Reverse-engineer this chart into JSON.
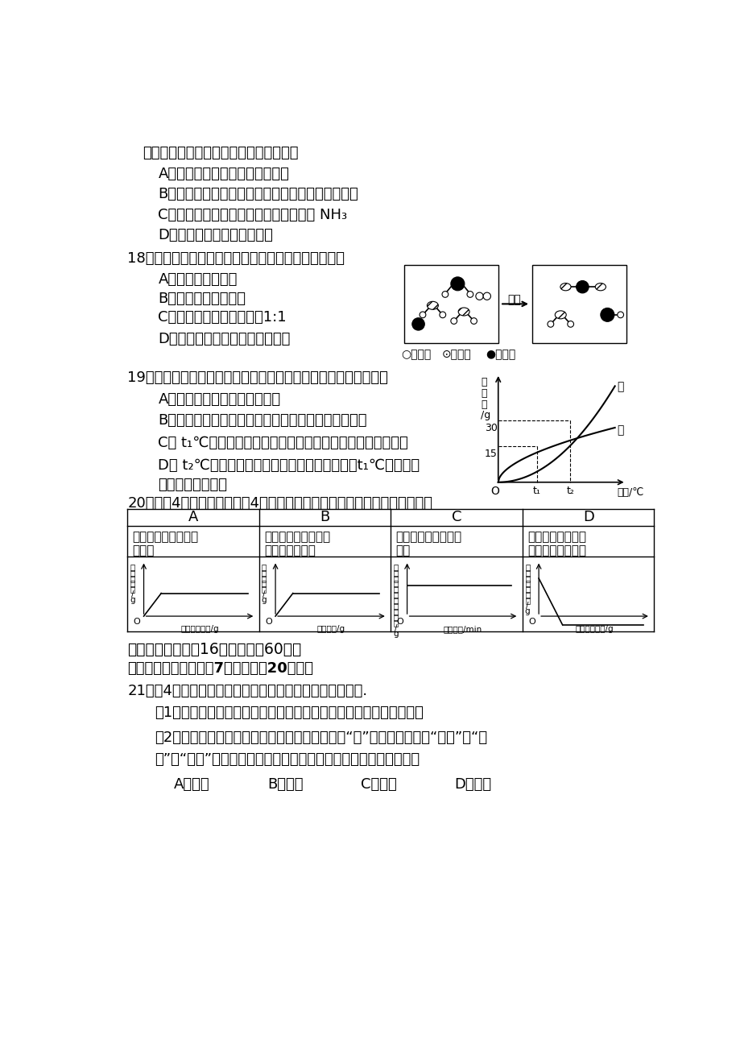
{
  "background_color": "#ffffff",
  "top_text": "加量必须严格控制。下列说法不正确的是",
  "q17_A": "A．可用盐酸鉴别亚硝酸钙和食盐",
  "q17_B": "B．亚硝酸钙可以加到食品中，但添加量要符合规定",
  "q17_C": "C．亚硝酸钙受热分解放出的气体可能是 NH₃",
  "q17_D": "D．亚硝酸钙由三种元素组成",
  "q18_stem": "18．右图是某反应的微观示意图，下列说法不正确的是",
  "q18_A": "A．反应物中有单质",
  "q18_B": "B．该反应为置换反应",
  "q18_C": "C．生成物的分子个数比为1:1",
  "q18_D": "D．化学反应前后原子的种类不变",
  "q18_leg1": "○氢原子",
  "q18_leg2": "⊙氧原子",
  "q18_leg3": "●硫原子",
  "q18_arrow": "点燃",
  "q19_stem": "19．甲、乙两种固体的溶解度曲线如右图所示，下列说法正确的是",
  "q19_A": "A．甲的溶解度大于乙的溶解度",
  "q19_B": "B．将甲的饱和溶液变为不饱和溶液可采用降温的方法",
  "q19_C": "C． t₁℃时，甲、乙的饱和溶液中溶质的质量分数不一定相等",
  "q19_D": "D． t₂℃时，将甲、乙等质量的饱和溶液降温至t₁℃，甲析出",
  "q19_D2": "的固体一定大于乙",
  "q19_jia": "甲",
  "q19_yi": "乙",
  "q19_xlabel": "温度/℃",
  "q19_ylabel1": "溶",
  "q19_ylabel2": "解",
  "q19_ylabel3": "度",
  "q19_ylabel4": "/g",
  "q19_O": "O",
  "q19_t1": "t₁",
  "q19_t2": "t₂",
  "q19_30": "30",
  "q19_15": "15",
  "q20_stem": "20．下兗4个坐标图分别表示4个实验过程中某些质量的变化，其中正确的是",
  "tbl_hA": "A",
  "tbl_hB": "B",
  "tbl_hC": "C",
  "tbl_hD": "D",
  "tbl_dA1": "向一定量铁粉中滴加",
  "tbl_dA2": "稀盐酸",
  "tbl_dB1": "向一定量硫酸铜溶液",
  "tbl_dB2": "中不断加入锦粉",
  "tbl_dC1": "加热一定量高锶酸鿠",
  "tbl_dC2": "固体",
  "tbl_dD1": "向一定量氢氧化钙",
  "tbl_dD2": "溶液中滴加稀盐酸",
  "tbl_ylA": [
    "氢",
    "气",
    "的",
    "质",
    "量",
    "/",
    "g"
  ],
  "tbl_ylB": [
    "溶",
    "液",
    "的",
    "质",
    "量",
    "/",
    "g"
  ],
  "tbl_ylC": [
    "剩",
    "锶",
    "余",
    "元",
    "固",
    "素",
    "体",
    "的",
    "中",
    "质",
    "量",
    "/",
    "g"
  ],
  "tbl_ylD": [
    "氢",
    "氧",
    "化",
    "钙",
    "的",
    "质",
    "量",
    "/",
    "g"
  ],
  "tbl_xlA": "稀盐酸的质量/g",
  "tbl_xlB": "锦的质量/g",
  "tbl_xlC": "加热时间/min",
  "tbl_xlD": "稀盐酸的质量/g",
  "sec2_title": "二、非选择题（入16个小题，入60分）",
  "sec2_sub": "【生活现象解释】（共7个小题，入20分。）",
  "q21_stem": "21．（4分）化学在生活和工农业生产中起着很重要的作用.",
  "q21_p1": "（1）防毒面具里的活性炭除去毒气是利用活性炭具有＿＿＿＿＿＿。",
  "q21_p2": "（2）青少年成长需要充足的蛋白质和钙。这里的“钙”是指＿＿＿（填“分子”、“原",
  "q21_p3": "子”或“元素”），下列各组食物中富含蛋白质的是＿＿（填序号）。",
  "q21_oA": "A．鸡蛋",
  "q21_oB": "B．青菜",
  "q21_oC": "C．米饭",
  "q21_oD": "D．牛奶"
}
